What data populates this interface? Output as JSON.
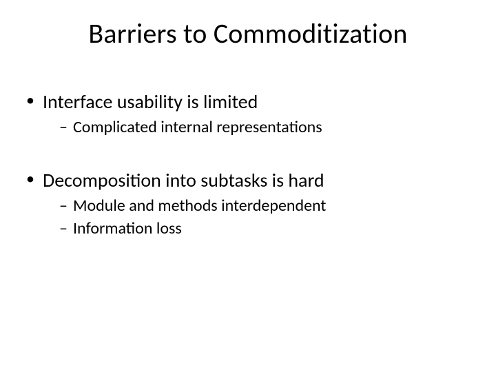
{
  "slide": {
    "title": "Barriers to Commoditization",
    "title_fontsize": 40,
    "background_color": "#ffffff",
    "text_color": "#000000",
    "font_family": "Calibri",
    "bullets": [
      {
        "text": "Interface usability is limited",
        "fontsize": 28,
        "marker": "•",
        "children": [
          {
            "text": "Complicated internal representations",
            "fontsize": 24,
            "marker": "–"
          }
        ]
      },
      {
        "text": "Decomposition into subtasks is hard",
        "fontsize": 28,
        "marker": "•",
        "children": [
          {
            "text": "Module and methods interdependent",
            "fontsize": 24,
            "marker": "–"
          },
          {
            "text": "Information loss",
            "fontsize": 24,
            "marker": "–"
          }
        ]
      }
    ]
  }
}
